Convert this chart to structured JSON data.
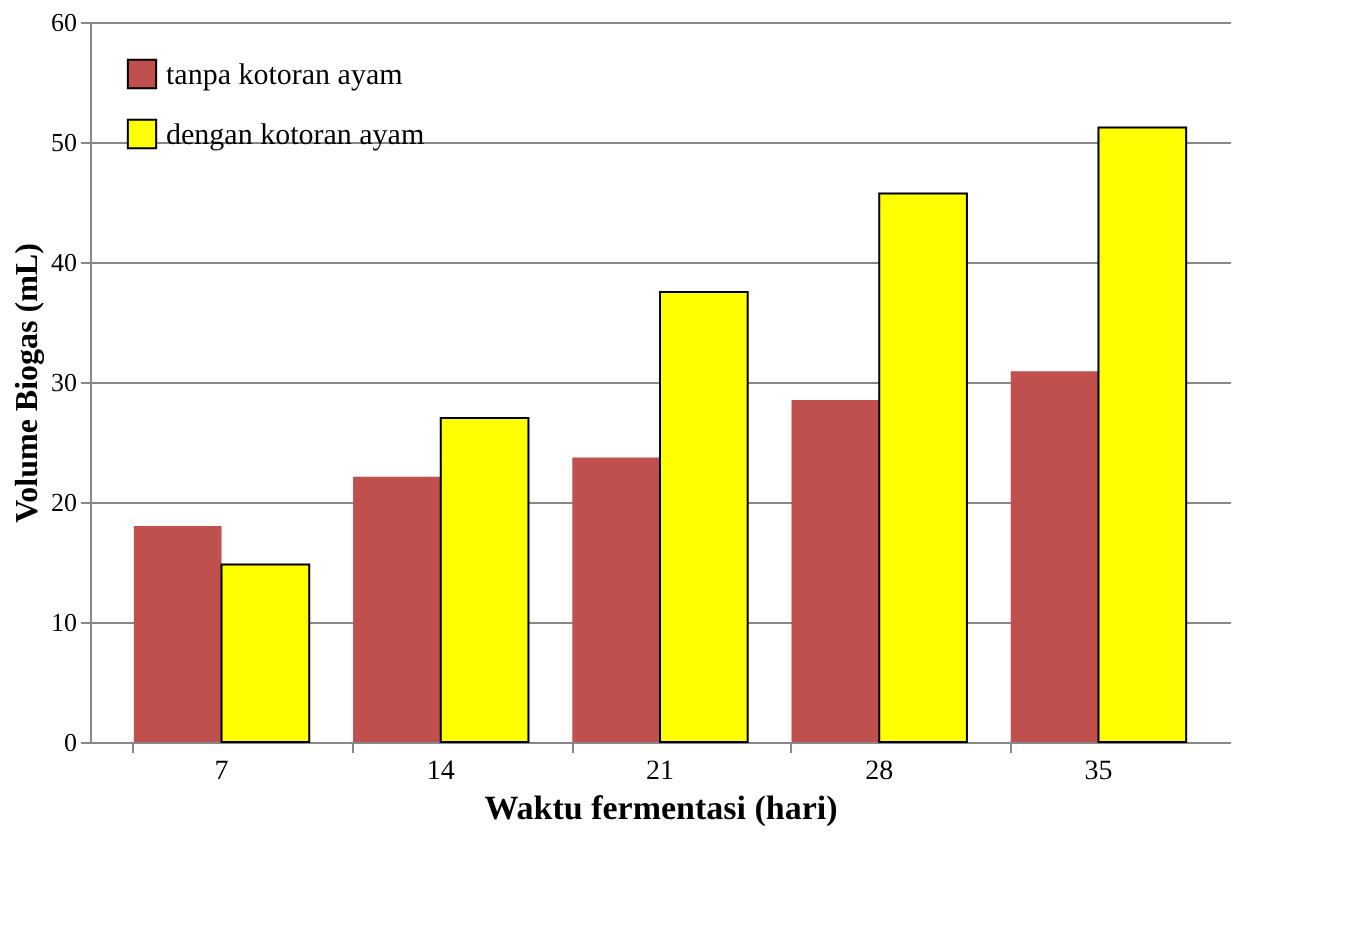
{
  "chart_data": {
    "type": "bar",
    "xlabel": "Waktu fermentasi (hari)",
    "ylabel": "Volume Biogas (mL)",
    "categories": [
      "7",
      "14",
      "21",
      "28",
      "35"
    ],
    "series": [
      {
        "name": "tanpa kotoran ayam",
        "color": "#c0504d",
        "values": [
          18,
          22.1,
          23.7,
          28.5,
          30.9
        ]
      },
      {
        "name": "dengan kotoran ayam",
        "color": "#ffff00",
        "values": [
          14.8,
          27.0,
          37.5,
          45.7,
          51.2
        ]
      }
    ],
    "ylim": [
      0,
      60
    ],
    "yticks": [
      0,
      10,
      20,
      30,
      40,
      50,
      60
    ],
    "grid": "y",
    "legend": "top left"
  }
}
